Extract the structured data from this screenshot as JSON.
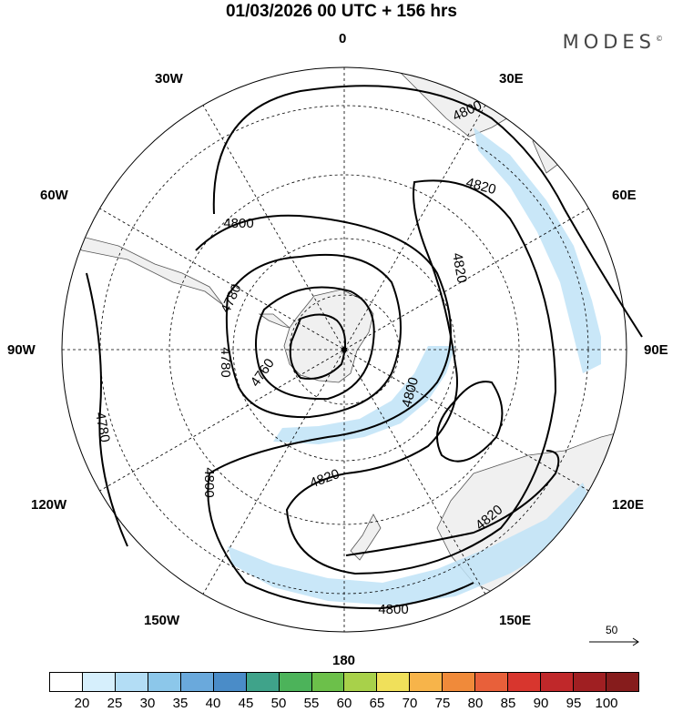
{
  "header": {
    "title": "01/03/2026  00 UTC  + 156 hrs",
    "brand": "MODES"
  },
  "map": {
    "projection": "south polar stereographic",
    "meridian_labels": {
      "lon_0": "0",
      "lon_30e": "30E",
      "lon_60e": "60E",
      "lon_90e": "90E",
      "lon_120e": "120E",
      "lon_150e": "150E",
      "lon_180": "180",
      "lon_150w": "150W",
      "lon_120w": "120W",
      "lon_90w": "90W",
      "lon_60w": "60W",
      "lon_30w": "30W"
    },
    "contour_labels": [
      "4800",
      "4820",
      "4820",
      "4780",
      "4780",
      "4760",
      "4800",
      "4780",
      "4800",
      "4820",
      "4800",
      "4820",
      "4800"
    ],
    "contour_interval": 20,
    "vector_reference": "50"
  },
  "colorbar": {
    "ticks": [
      "20",
      "25",
      "30",
      "35",
      "40",
      "45",
      "50",
      "55",
      "60",
      "65",
      "70",
      "75",
      "80",
      "85",
      "90",
      "95",
      "100"
    ],
    "colors": [
      "#ffffff",
      "#d6effc",
      "#b3ddf5",
      "#8cc7ea",
      "#6aa9dc",
      "#4a8cc8",
      "#3fa38a",
      "#4cb35a",
      "#6cc04a",
      "#a8d14a",
      "#f0e05a",
      "#f7b44a",
      "#f08a3a",
      "#e8603a",
      "#d8362e",
      "#c0282a",
      "#a01f22",
      "#861c1c"
    ]
  }
}
